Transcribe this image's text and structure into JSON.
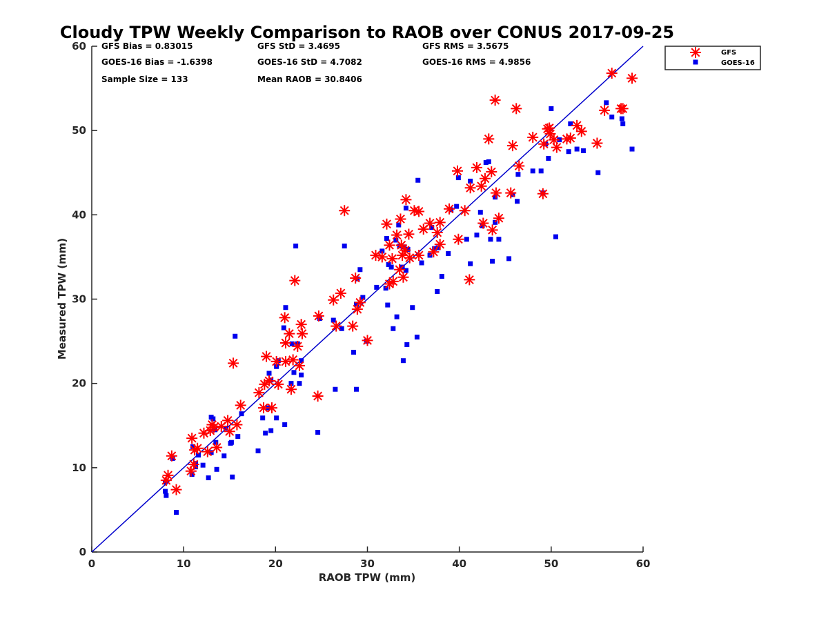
{
  "chart_data": {
    "type": "scatter",
    "title": "Cloudy TPW Weekly Comparison to RAOB over CONUS 2017-09-25",
    "xlabel": "RAOB TPW (mm)",
    "ylabel": "Measured TPW (mm)",
    "xlim": [
      0,
      60
    ],
    "ylim": [
      0,
      60
    ],
    "xticks": [
      "0",
      "10",
      "20",
      "30",
      "40",
      "50",
      "60"
    ],
    "yticks": [
      "0",
      "10",
      "20",
      "30",
      "40",
      "50",
      "60"
    ],
    "grid": false,
    "legend_position": "outside top-right",
    "stats": {
      "gfs_bias": "GFS Bias = 0.83015",
      "gfs_std": "GFS StD = 3.4695",
      "gfs_rms": "GFS RMS = 3.5675",
      "goes_bias": "GOES-16 Bias = -1.6398",
      "goes_std": "GOES-16 StD = 4.7082",
      "goes_rms": "GOES-16 RMS = 4.9856",
      "sample_size": "Sample Size = 133",
      "mean_raob": "Mean RAOB = 30.8406"
    },
    "reference_line": {
      "x": [
        0,
        60
      ],
      "y": [
        0,
        60
      ],
      "color": "#0000cc"
    },
    "series": [
      {
        "name": "GFS",
        "marker": "asterisk",
        "color": "#ff0000",
        "points": [
          [
            8.1,
            8.5
          ],
          [
            8.3,
            9.1
          ],
          [
            8.7,
            11.4
          ],
          [
            9.2,
            7.4
          ],
          [
            10.8,
            9.6
          ],
          [
            10.9,
            13.5
          ],
          [
            11.1,
            10.4
          ],
          [
            11.5,
            12.3
          ],
          [
            11.2,
            12.1
          ],
          [
            12.2,
            14.1
          ],
          [
            12.6,
            11.9
          ],
          [
            12.9,
            14.4
          ],
          [
            13.1,
            15.1
          ],
          [
            13.3,
            14.8
          ],
          [
            13.6,
            12.4
          ],
          [
            14.1,
            14.9
          ],
          [
            14.8,
            15.6
          ],
          [
            15.0,
            14.3
          ],
          [
            15.4,
            22.4
          ],
          [
            15.8,
            15.1
          ],
          [
            16.2,
            17.4
          ],
          [
            18.2,
            18.9
          ],
          [
            18.7,
            17.1
          ],
          [
            18.8,
            19.9
          ],
          [
            19.0,
            23.2
          ],
          [
            19.3,
            20.3
          ],
          [
            19.6,
            17.1
          ],
          [
            20.1,
            22.6
          ],
          [
            20.3,
            19.9
          ],
          [
            21.0,
            27.8
          ],
          [
            21.1,
            24.8
          ],
          [
            21.1,
            22.6
          ],
          [
            21.5,
            25.9
          ],
          [
            21.7,
            19.3
          ],
          [
            21.9,
            22.8
          ],
          [
            22.1,
            32.2
          ],
          [
            22.4,
            24.4
          ],
          [
            22.6,
            22.1
          ],
          [
            22.8,
            27.0
          ],
          [
            22.9,
            25.9
          ],
          [
            24.6,
            18.5
          ],
          [
            24.7,
            28.0
          ],
          [
            26.3,
            29.9
          ],
          [
            26.6,
            26.8
          ],
          [
            27.1,
            30.7
          ],
          [
            27.5,
            40.5
          ],
          [
            28.4,
            26.8
          ],
          [
            28.7,
            32.5
          ],
          [
            28.9,
            28.8
          ],
          [
            29.2,
            29.6
          ],
          [
            30.0,
            25.1
          ],
          [
            30.9,
            35.2
          ],
          [
            31.6,
            35.0
          ],
          [
            32.1,
            38.9
          ],
          [
            32.4,
            36.4
          ],
          [
            32.4,
            31.8
          ],
          [
            32.7,
            34.8
          ],
          [
            32.8,
            32.1
          ],
          [
            33.2,
            37.6
          ],
          [
            33.5,
            33.5
          ],
          [
            33.6,
            39.5
          ],
          [
            33.7,
            36.4
          ],
          [
            33.8,
            35.2
          ],
          [
            33.9,
            32.6
          ],
          [
            34.1,
            35.8
          ],
          [
            34.2,
            41.8
          ],
          [
            34.5,
            37.7
          ],
          [
            34.6,
            34.9
          ],
          [
            35.1,
            40.5
          ],
          [
            35.6,
            40.4
          ],
          [
            35.6,
            35.2
          ],
          [
            36.1,
            38.3
          ],
          [
            36.8,
            39.0
          ],
          [
            37.2,
            35.6
          ],
          [
            37.6,
            37.9
          ],
          [
            37.9,
            39.1
          ],
          [
            37.9,
            36.5
          ],
          [
            38.9,
            40.7
          ],
          [
            39.8,
            45.2
          ],
          [
            39.9,
            37.1
          ],
          [
            40.6,
            40.5
          ],
          [
            41.1,
            32.3
          ],
          [
            41.2,
            43.2
          ],
          [
            41.9,
            45.6
          ],
          [
            42.4,
            43.4
          ],
          [
            42.6,
            39.0
          ],
          [
            42.8,
            44.3
          ],
          [
            43.2,
            49.0
          ],
          [
            43.5,
            45.1
          ],
          [
            43.6,
            38.2
          ],
          [
            43.9,
            53.6
          ],
          [
            44.0,
            42.6
          ],
          [
            44.3,
            39.6
          ],
          [
            45.6,
            42.6
          ],
          [
            45.8,
            48.2
          ],
          [
            46.2,
            52.6
          ],
          [
            46.5,
            45.8
          ],
          [
            48.0,
            49.2
          ],
          [
            49.1,
            42.5
          ],
          [
            49.2,
            48.4
          ],
          [
            49.6,
            50.2
          ],
          [
            49.8,
            50.3
          ],
          [
            49.9,
            49.6
          ],
          [
            50.3,
            48.9
          ],
          [
            50.6,
            48.0
          ],
          [
            51.7,
            49.0
          ],
          [
            52.1,
            49.1
          ],
          [
            52.8,
            50.6
          ],
          [
            53.3,
            49.9
          ],
          [
            55.0,
            48.5
          ],
          [
            55.8,
            52.4
          ],
          [
            56.6,
            56.8
          ],
          [
            57.6,
            52.6
          ],
          [
            57.8,
            52.6
          ],
          [
            58.8,
            56.2
          ]
        ]
      },
      {
        "name": "GOES-16",
        "marker": "square",
        "color": "#0000ee",
        "points": [
          [
            8.0,
            7.2
          ],
          [
            8.1,
            6.7
          ],
          [
            8.0,
            8.3
          ],
          [
            8.8,
            11.1
          ],
          [
            9.2,
            4.7
          ],
          [
            10.9,
            9.2
          ],
          [
            11.0,
            12.5
          ],
          [
            11.3,
            10.1
          ],
          [
            11.3,
            10.5
          ],
          [
            11.6,
            11.5
          ],
          [
            12.1,
            10.3
          ],
          [
            12.7,
            8.8
          ],
          [
            13.0,
            11.8
          ],
          [
            13.0,
            16.0
          ],
          [
            13.2,
            15.8
          ],
          [
            13.4,
            14.5
          ],
          [
            13.5,
            13.0
          ],
          [
            13.6,
            9.8
          ],
          [
            14.4,
            11.4
          ],
          [
            14.6,
            14.7
          ],
          [
            15.1,
            12.9
          ],
          [
            15.2,
            13.0
          ],
          [
            15.3,
            8.9
          ],
          [
            15.6,
            25.6
          ],
          [
            15.9,
            13.7
          ],
          [
            16.3,
            16.4
          ],
          [
            18.1,
            12.0
          ],
          [
            18.6,
            15.9
          ],
          [
            18.9,
            14.1
          ],
          [
            19.2,
            17.1
          ],
          [
            19.3,
            21.2
          ],
          [
            19.5,
            14.4
          ],
          [
            19.5,
            20.4
          ],
          [
            20.1,
            15.9
          ],
          [
            20.1,
            22.0
          ],
          [
            20.3,
            22.7
          ],
          [
            20.9,
            26.6
          ],
          [
            21.0,
            15.1
          ],
          [
            21.1,
            29.0
          ],
          [
            21.7,
            20.0
          ],
          [
            21.8,
            24.7
          ],
          [
            22.0,
            21.3
          ],
          [
            22.2,
            36.3
          ],
          [
            22.4,
            24.7
          ],
          [
            22.6,
            20.0
          ],
          [
            22.8,
            22.7
          ],
          [
            22.8,
            21.0
          ],
          [
            24.6,
            14.2
          ],
          [
            24.8,
            27.7
          ],
          [
            26.3,
            27.5
          ],
          [
            26.5,
            19.3
          ],
          [
            27.2,
            26.5
          ],
          [
            27.5,
            36.3
          ],
          [
            28.5,
            23.7
          ],
          [
            28.8,
            29.4
          ],
          [
            28.8,
            19.3
          ],
          [
            28.9,
            32.4
          ],
          [
            29.2,
            33.5
          ],
          [
            29.5,
            30.2
          ],
          [
            29.9,
            25.0
          ],
          [
            31.0,
            31.4
          ],
          [
            31.6,
            35.7
          ],
          [
            32.0,
            31.3
          ],
          [
            32.1,
            37.2
          ],
          [
            32.2,
            29.3
          ],
          [
            32.3,
            34.1
          ],
          [
            32.6,
            33.8
          ],
          [
            32.8,
            26.5
          ],
          [
            33.1,
            37.0
          ],
          [
            33.2,
            27.9
          ],
          [
            33.4,
            38.8
          ],
          [
            33.5,
            36.3
          ],
          [
            33.8,
            33.8
          ],
          [
            33.9,
            22.7
          ],
          [
            34.0,
            36.2
          ],
          [
            34.2,
            40.8
          ],
          [
            34.2,
            33.4
          ],
          [
            34.3,
            24.6
          ],
          [
            34.4,
            35.9
          ],
          [
            34.9,
            29.0
          ],
          [
            35.4,
            25.5
          ],
          [
            35.5,
            44.1
          ],
          [
            35.9,
            34.3
          ],
          [
            36.8,
            35.2
          ],
          [
            37.0,
            38.5
          ],
          [
            37.3,
            36.0
          ],
          [
            37.6,
            30.9
          ],
          [
            37.7,
            36.1
          ],
          [
            38.1,
            32.7
          ],
          [
            38.8,
            35.4
          ],
          [
            39.1,
            40.6
          ],
          [
            39.7,
            41.0
          ],
          [
            39.9,
            44.4
          ],
          [
            40.8,
            37.1
          ],
          [
            41.2,
            44.0
          ],
          [
            41.2,
            34.2
          ],
          [
            41.9,
            37.6
          ],
          [
            42.3,
            40.3
          ],
          [
            42.5,
            38.7
          ],
          [
            42.9,
            46.2
          ],
          [
            43.2,
            46.3
          ],
          [
            43.4,
            37.1
          ],
          [
            43.6,
            34.5
          ],
          [
            43.9,
            42.1
          ],
          [
            43.9,
            39.1
          ],
          [
            44.3,
            37.1
          ],
          [
            45.4,
            34.8
          ],
          [
            45.8,
            42.4
          ],
          [
            46.3,
            41.6
          ],
          [
            46.4,
            44.8
          ],
          [
            48.0,
            45.2
          ],
          [
            48.9,
            45.2
          ],
          [
            49.1,
            42.6
          ],
          [
            49.4,
            48.4
          ],
          [
            49.7,
            46.7
          ],
          [
            50.0,
            52.6
          ],
          [
            50.5,
            37.4
          ],
          [
            50.9,
            48.9
          ],
          [
            51.9,
            47.5
          ],
          [
            52.1,
            50.8
          ],
          [
            52.8,
            47.8
          ],
          [
            53.5,
            47.6
          ],
          [
            55.1,
            45.0
          ],
          [
            56.0,
            53.3
          ],
          [
            56.6,
            51.6
          ],
          [
            57.7,
            51.4
          ],
          [
            57.8,
            50.8
          ],
          [
            58.8,
            47.8
          ]
        ]
      }
    ]
  }
}
